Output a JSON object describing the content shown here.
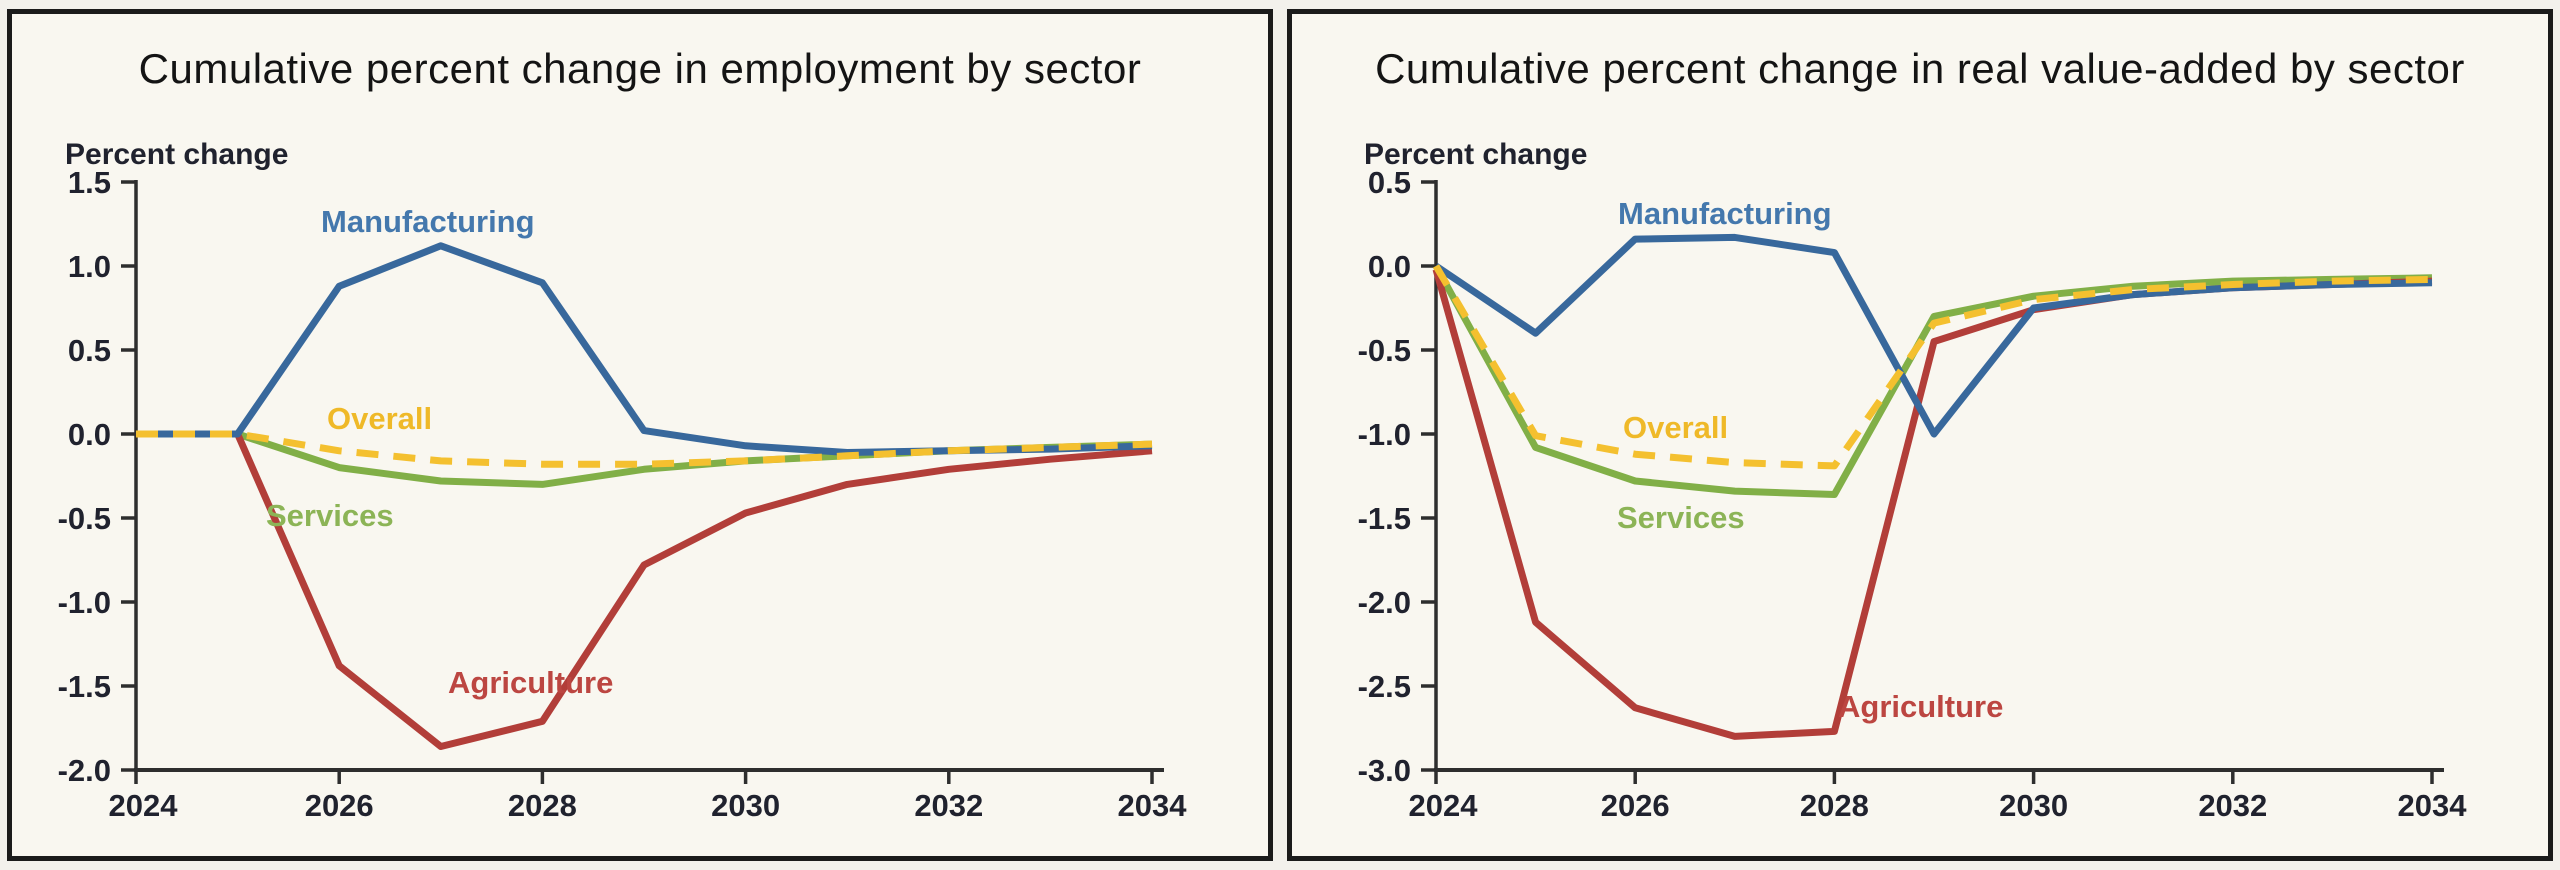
{
  "page": {
    "background": "#f3f1ec",
    "panel_background": "#f9f7f0",
    "panel_border_color": "#1b1b1b",
    "axis_color": "#2e2e2e",
    "tick_text_color": "#20222e"
  },
  "chart_data": [
    {
      "type": "line",
      "title": "Cumulative percent change in employment by sector",
      "ylabel": "Percent change",
      "xlabel": "",
      "years": [
        2024,
        2025,
        2026,
        2027,
        2028,
        2029,
        2030,
        2031,
        2032,
        2033,
        2034
      ],
      "x_tick_labels": [
        "2024",
        "2026",
        "2028",
        "2030",
        "2032",
        "2034"
      ],
      "y_ticks": [
        1.5,
        1.0,
        0.5,
        0.0,
        -0.5,
        -1.0,
        -1.5,
        -2.0
      ],
      "y_tick_labels": [
        "1.5",
        "1.0",
        "0.5",
        "0.0",
        "-0.5",
        "-1.0",
        "-1.5",
        "-2.0"
      ],
      "ylim": [
        -2.0,
        1.5
      ],
      "xlim": [
        2024,
        2034
      ],
      "grid": false,
      "legend": "inline-labels",
      "series": [
        {
          "name": "Services",
          "color": "#81AF47",
          "label_color": "#8CB456",
          "dash": false,
          "values": [
            0,
            0,
            -0.2,
            -0.28,
            -0.3,
            -0.21,
            -0.16,
            -0.13,
            -0.1,
            -0.08,
            -0.06
          ]
        },
        {
          "name": "Agriculture",
          "color": "#B23E39",
          "label_color": "#BC4641",
          "dash": false,
          "values": [
            0,
            0,
            -1.38,
            -1.86,
            -1.71,
            -0.78,
            -0.47,
            -0.3,
            -0.21,
            -0.15,
            -0.1
          ]
        },
        {
          "name": "Manufacturing",
          "color": "#38689C",
          "label_color": "#4478AD",
          "dash": false,
          "values": [
            0,
            0,
            0.88,
            1.12,
            0.9,
            0.02,
            -0.07,
            -0.11,
            -0.1,
            -0.09,
            -0.07
          ]
        },
        {
          "name": "Overall",
          "color": "#F4C02F",
          "label_color": "#EFB928",
          "dash": true,
          "values": [
            0,
            0,
            -0.1,
            -0.16,
            -0.18,
            -0.18,
            -0.16,
            -0.13,
            -0.1,
            -0.08,
            -0.06
          ]
        }
      ]
    },
    {
      "type": "line",
      "title": "Cumulative percent change in real value-added by sector",
      "ylabel": "Percent change",
      "xlabel": "",
      "years": [
        2024,
        2025,
        2026,
        2027,
        2028,
        2029,
        2030,
        2031,
        2032,
        2033,
        2034
      ],
      "x_tick_labels": [
        "2024",
        "2026",
        "2028",
        "2030",
        "2032",
        "2034"
      ],
      "y_ticks": [
        0.5,
        0.0,
        -0.5,
        -1.0,
        -1.5,
        -2.0,
        -2.5,
        -3.0
      ],
      "y_tick_labels": [
        "0.5",
        "0.0",
        "-0.5",
        "-1.0",
        "-1.5",
        "-2.0",
        "-2.5",
        "-3.0"
      ],
      "ylim": [
        -3.0,
        0.5
      ],
      "xlim": [
        2024,
        2034
      ],
      "grid": false,
      "legend": "inline-labels",
      "series": [
        {
          "name": "Services",
          "color": "#81AF47",
          "label_color": "#8CB456",
          "dash": false,
          "values": [
            0,
            -1.08,
            -1.28,
            -1.34,
            -1.36,
            -0.3,
            -0.18,
            -0.12,
            -0.09,
            -0.08,
            -0.07
          ]
        },
        {
          "name": "Agriculture",
          "color": "#B23E39",
          "label_color": "#BC4641",
          "dash": false,
          "values": [
            -0.02,
            -2.12,
            -2.63,
            -2.8,
            -2.77,
            -0.45,
            -0.26,
            -0.17,
            -0.13,
            -0.11,
            -0.09
          ]
        },
        {
          "name": "Manufacturing",
          "color": "#38689C",
          "label_color": "#4478AD",
          "dash": false,
          "values": [
            0,
            -0.4,
            0.16,
            0.17,
            0.08,
            -1.0,
            -0.25,
            -0.17,
            -0.13,
            -0.11,
            -0.1
          ]
        },
        {
          "name": "Overall",
          "color": "#F4C02F",
          "label_color": "#EFB928",
          "dash": true,
          "values": [
            0,
            -1.01,
            -1.12,
            -1.17,
            -1.19,
            -0.34,
            -0.2,
            -0.14,
            -0.11,
            -0.09,
            -0.08
          ]
        }
      ]
    }
  ]
}
